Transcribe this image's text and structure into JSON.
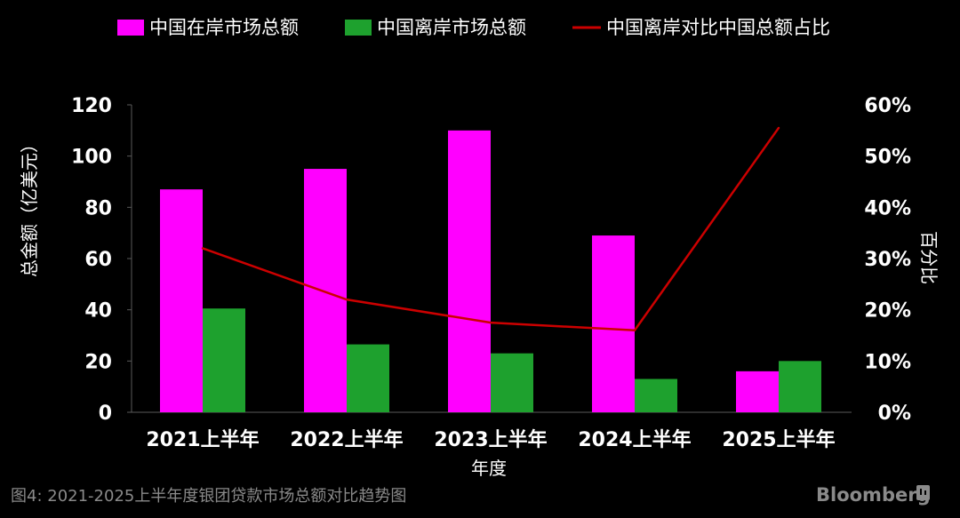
{
  "chart_data": {
    "type": "bar",
    "categories": [
      "2021上半年",
      "2022上半年",
      "2023上半年",
      "2024上半年",
      "2025上半年"
    ],
    "series": [
      {
        "name": "中国在岸市场总额",
        "type": "bar",
        "axis": "left",
        "color": "#ff00ff",
        "values": [
          87,
          95,
          110,
          69,
          16
        ]
      },
      {
        "name": "中国离岸市场总额",
        "type": "bar",
        "axis": "left",
        "color": "#1ea12e",
        "values": [
          40.5,
          26.5,
          23,
          13,
          20
        ]
      },
      {
        "name": "中国离岸对比中国总额占比",
        "type": "line",
        "axis": "right",
        "color": "#cc0000",
        "values": [
          0.32,
          0.22,
          0.175,
          0.16,
          0.555
        ]
      }
    ],
    "xlabel": "年度",
    "ylabel": "总金额（亿美元）",
    "y2label": "百分比",
    "ylim": [
      0,
      120
    ],
    "yticks": [
      "0",
      "20",
      "40",
      "60",
      "80",
      "100",
      "120"
    ],
    "y2lim": [
      0,
      0.6
    ],
    "y2ticks": [
      "0%",
      "10%",
      "20%",
      "30%",
      "40%",
      "50%",
      "60%"
    ],
    "legend_position": "top",
    "grid": false
  },
  "caption": "图4: 2021-2025上半年度银团贷款市场总额对比趋势图",
  "brand": "Bloomberg"
}
